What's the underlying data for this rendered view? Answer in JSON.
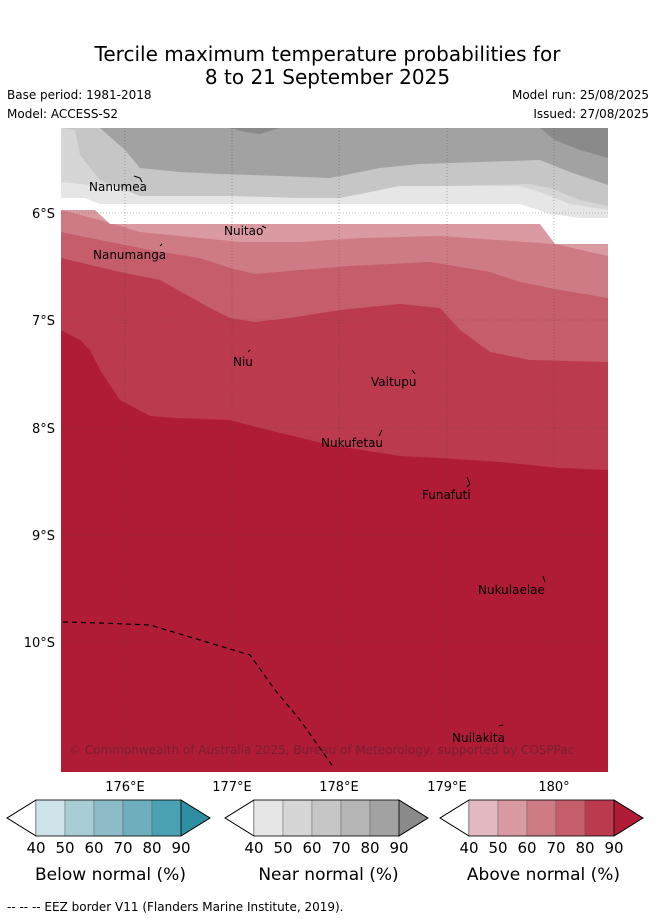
{
  "title_line1": "Tercile maximum temperature probabilities for",
  "title_line2": "8 to 21 September 2025",
  "base_period": "Base period: 1981-2018",
  "model": "Model: ACCESS-S2",
  "model_run": "Model run: 25/08/2025",
  "issued": "Issued: 27/08/2025",
  "lon_ticks": [
    "176°E",
    "177°E",
    "178°E",
    "179°E",
    "180°"
  ],
  "lat_ticks": [
    "6°S",
    "7°S",
    "8°S",
    "9°S",
    "10°S"
  ],
  "places": [
    "Nanumea",
    "Nuitao",
    "Nanumanga",
    "Niu",
    "Vaitupu",
    "Nukufetau",
    "Funafuti",
    "Nukulaelae",
    "Nuilakita"
  ],
  "copyright": "© Commonwealth of Australia 2025, Bureau of Meteorology, supported by COSPPac",
  "colorbars": [
    {
      "title": "Below normal (%)",
      "ticks": [
        "40",
        "50",
        "60",
        "70",
        "80",
        "90"
      ],
      "colors": [
        "#ffffff",
        "#cde3e9",
        "#a9cdd5",
        "#8bbcc8",
        "#6eaebd",
        "#4aa1b3",
        "#2f8fa2"
      ]
    },
    {
      "title": "Near normal (%)",
      "ticks": [
        "40",
        "50",
        "60",
        "70",
        "80",
        "90"
      ],
      "colors": [
        "#ffffff",
        "#e6e6e6",
        "#d6d6d6",
        "#c6c6c6",
        "#b6b6b6",
        "#a2a2a2",
        "#8a8a8a"
      ]
    },
    {
      "title": "Above normal (%)",
      "ticks": [
        "40",
        "50",
        "60",
        "70",
        "80",
        "90"
      ],
      "colors": [
        "#ffffff",
        "#e2b9c0",
        "#d99aa2",
        "#cf7b85",
        "#c65d6a",
        "#bb3a4e",
        "#b01c36"
      ]
    }
  ],
  "footer": "-- -- -- EEZ border V11 (Flanders Marine Institute, 2019)."
}
